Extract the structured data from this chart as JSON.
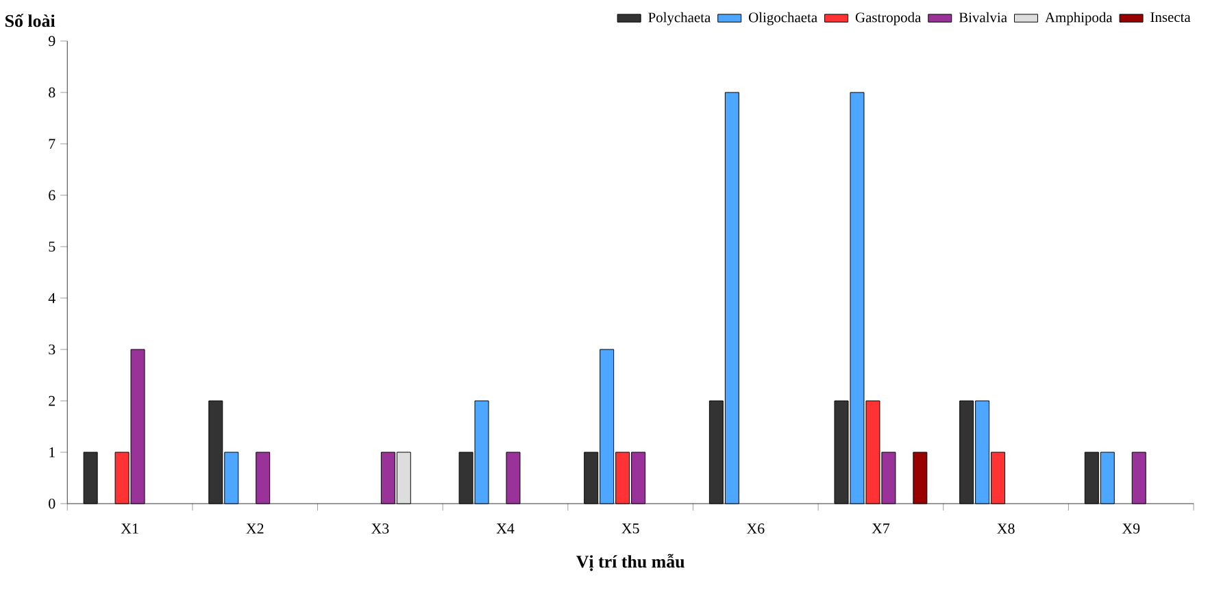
{
  "chart_data": {
    "type": "bar",
    "xlabel": "Vị trí thu mẫu",
    "ylabel": "Số loài",
    "categories": [
      "X1",
      "X2",
      "X3",
      "X4",
      "X5",
      "X6",
      "X7",
      "X8",
      "X9"
    ],
    "series": [
      {
        "name": "Polychaeta",
        "color": "#333333",
        "values": [
          1,
          2,
          0,
          1,
          1,
          2,
          2,
          2,
          1
        ]
      },
      {
        "name": "Oligochaeta",
        "color": "#4da6ff",
        "values": [
          0,
          1,
          0,
          2,
          3,
          8,
          8,
          2,
          1
        ]
      },
      {
        "name": "Gastropoda",
        "color": "#ff3333",
        "values": [
          1,
          0,
          0,
          0,
          1,
          0,
          2,
          1,
          0
        ]
      },
      {
        "name": "Bivalvia",
        "color": "#993399",
        "values": [
          3,
          1,
          1,
          1,
          1,
          0,
          1,
          0,
          1
        ]
      },
      {
        "name": "Amphipoda",
        "color": "#dddddd",
        "values": [
          0,
          0,
          1,
          0,
          0,
          0,
          0,
          0,
          0
        ]
      },
      {
        "name": "Insecta",
        "color": "#990000",
        "values": [
          0,
          0,
          0,
          0,
          0,
          0,
          1,
          0,
          0
        ]
      }
    ],
    "ylim": [
      0,
      9
    ],
    "yticks": [
      0,
      1,
      2,
      3,
      4,
      5,
      6,
      7,
      8,
      9
    ],
    "grid": false,
    "legend": "top right"
  }
}
